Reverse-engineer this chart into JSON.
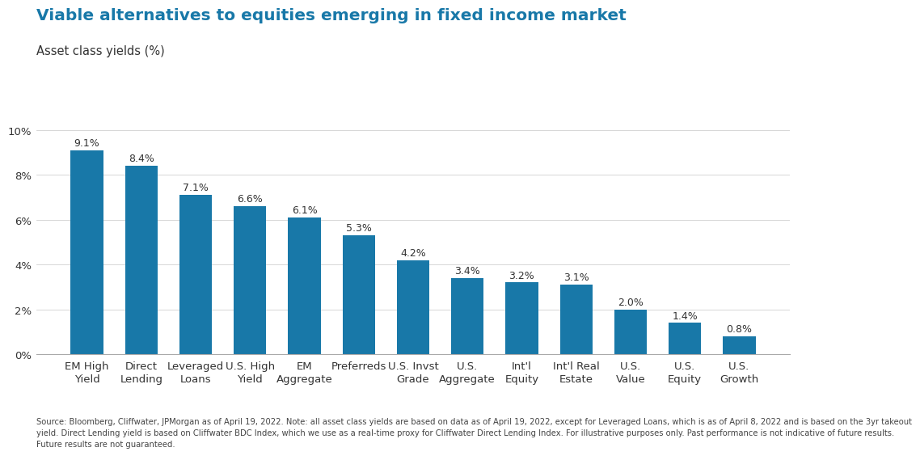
{
  "title": "Viable alternatives to equities emerging in fixed income market",
  "subtitle": "Asset class yields (%)",
  "categories": [
    "EM High\nYield",
    "Direct\nLending",
    "Leveraged\nLoans",
    "U.S. High\nYield",
    "EM\nAggregate",
    "Preferreds",
    "U.S. Invst\nGrade",
    "U.S.\nAggregate",
    "Int'l\nEquity",
    "Int'l Real\nEstate",
    "U.S.\nValue",
    "U.S.\nEquity",
    "U.S.\nGrowth"
  ],
  "values": [
    9.1,
    8.4,
    7.1,
    6.6,
    6.1,
    5.3,
    4.2,
    3.4,
    3.2,
    3.1,
    2.0,
    1.4,
    0.8
  ],
  "labels": [
    "9.1%",
    "8.4%",
    "7.1%",
    "6.6%",
    "6.1%",
    "5.3%",
    "4.2%",
    "3.4%",
    "3.2%",
    "3.1%",
    "2.0%",
    "1.4%",
    "0.8%"
  ],
  "bar_color": "#1878a8",
  "title_color": "#1878a8",
  "subtitle_color": "#333333",
  "label_color": "#333333",
  "axis_color": "#aaaaaa",
  "tick_color": "#333333",
  "background_color": "#ffffff",
  "ylim": [
    0,
    10.8
  ],
  "yticks": [
    0,
    2,
    4,
    6,
    8,
    10
  ],
  "ytick_labels": [
    "0%",
    "2%",
    "4%",
    "6%",
    "8%",
    "10%"
  ],
  "footnote_line1": "Source: Bloomberg, Cliffwater, JPMorgan as of April 19, 2022. Note: all asset class yields are based on data as of April 19, 2022, except for Leveraged Loans, which is as of April 8, 2022 and is based on the 3yr takeout",
  "footnote_line2": "yield. Direct Lending yield is based on Cliffwater BDC Index, which we use as a real-time proxy for Cliffwater Direct Lending Index. For illustrative purposes only. Past performance is not indicative of future results.",
  "footnote_line3": "Future results are not guaranteed.",
  "title_fontsize": 14.5,
  "subtitle_fontsize": 10.5,
  "label_fontsize": 9,
  "tick_fontsize": 9.5,
  "footnote_fontsize": 7.2,
  "bar_width": 0.6
}
